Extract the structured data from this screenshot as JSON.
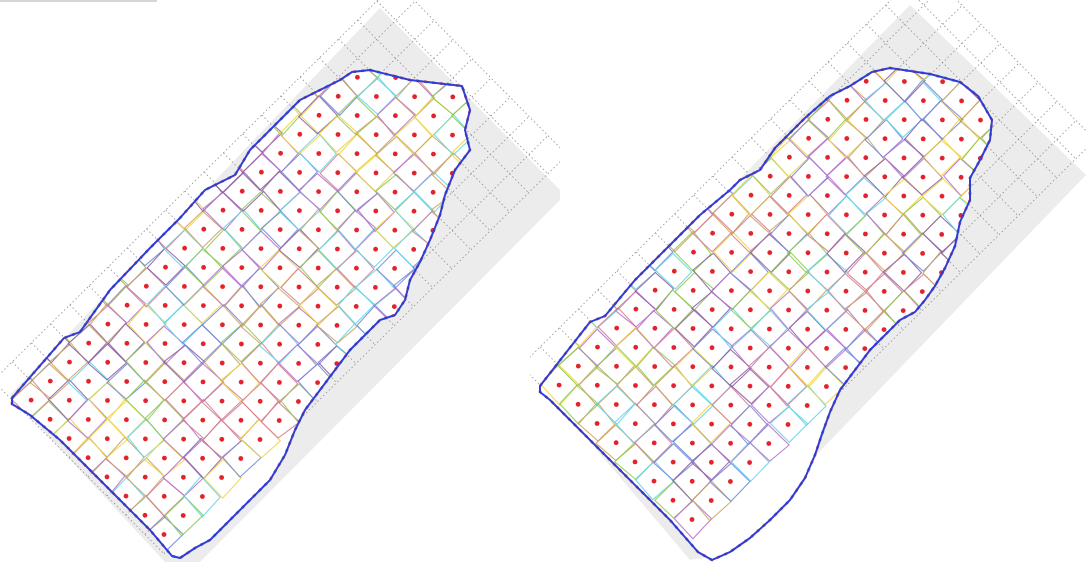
{
  "colors": {
    "background": "#ffffff",
    "outer_grid_fill": "#ececec",
    "outer_grid_line": "#8f8f8f",
    "boundary": "#2b3fd8",
    "boundary_trace": "#d33c3c",
    "centroid": "#e5222b",
    "cell_palette": [
      "#8a5aa0",
      "#5fd3e6",
      "#f0d23a",
      "#c9a060",
      "#8cc84f",
      "#d57a8f",
      "#6d86d8",
      "#b56fc9"
    ]
  },
  "panels": [
    {
      "id": "left"
    },
    {
      "id": "right"
    }
  ]
}
